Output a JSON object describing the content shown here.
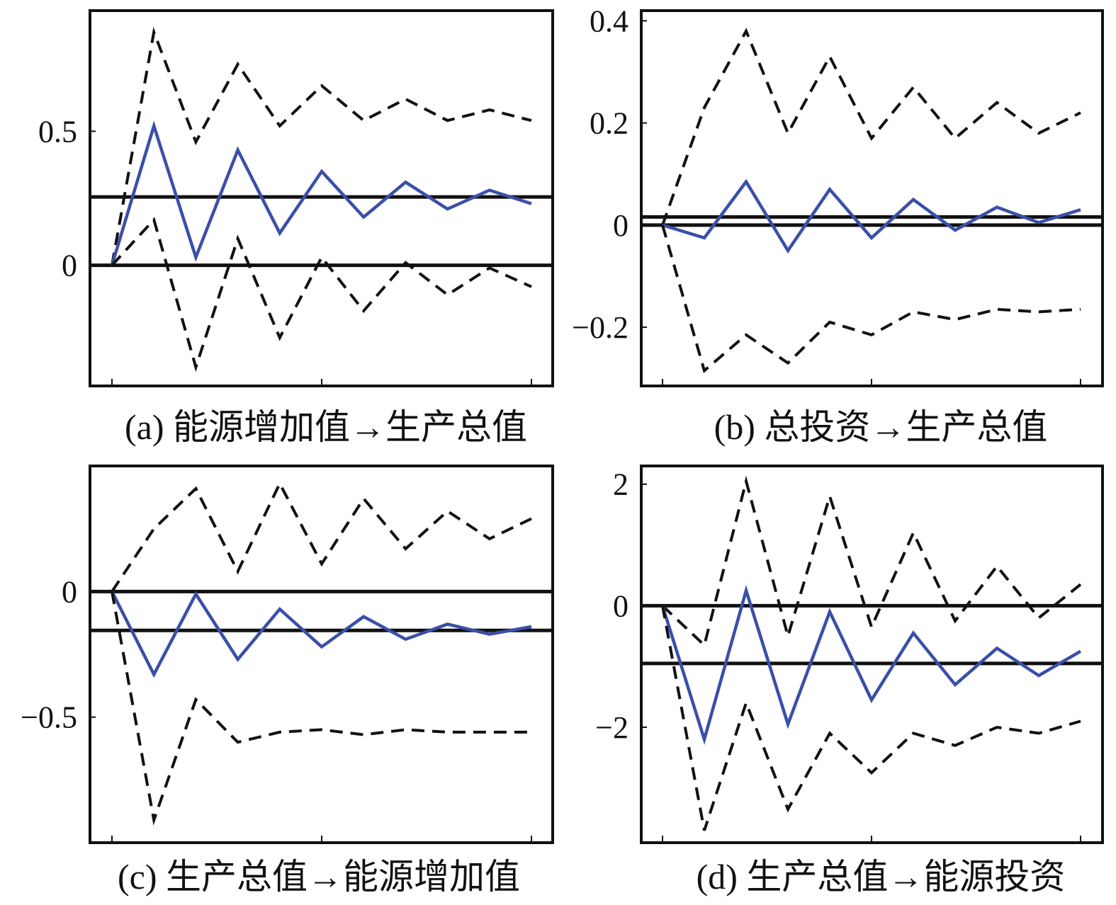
{
  "colors": {
    "impulse_response": "#3a4fa8",
    "confidence_band": "#111111",
    "reference_line": "#111111"
  },
  "chart_data": [
    {
      "type": "line",
      "caption": "(a) 能源增加值→生产总值",
      "x": [
        0,
        1,
        2,
        3,
        4,
        5,
        6,
        7,
        8,
        9,
        10
      ],
      "xlim": [
        0,
        10
      ],
      "ylim": [
        -0.45,
        0.95
      ],
      "yticks": [
        0,
        0.5
      ],
      "ytick_labels": [
        "0",
        "0.5"
      ],
      "xticks": [
        0,
        5,
        10
      ],
      "hlines": [
        0,
        0.255
      ],
      "series": [
        {
          "role": "upper",
          "values": [
            0,
            0.87,
            0.46,
            0.75,
            0.52,
            0.67,
            0.54,
            0.62,
            0.54,
            0.58,
            0.54
          ]
        },
        {
          "role": "irf",
          "values": [
            0,
            0.52,
            0.03,
            0.43,
            0.12,
            0.35,
            0.18,
            0.31,
            0.21,
            0.28,
            0.23
          ]
        },
        {
          "role": "lower",
          "values": [
            0,
            0.17,
            -0.38,
            0.1,
            -0.27,
            0.03,
            -0.17,
            0.01,
            -0.11,
            -0.01,
            -0.08
          ]
        }
      ]
    },
    {
      "type": "line",
      "caption": "(b) 总投资→生产总值",
      "x": [
        0,
        1,
        2,
        3,
        4,
        5,
        6,
        7,
        8,
        9,
        10
      ],
      "xlim": [
        0,
        10
      ],
      "ylim": [
        -0.315,
        0.42
      ],
      "yticks": [
        -0.2,
        0,
        0.2,
        0.4
      ],
      "ytick_labels": [
        "−0.2",
        "0",
        "0.2",
        "0.4"
      ],
      "xticks": [
        0,
        5,
        10
      ],
      "hlines": [
        0,
        0.016
      ],
      "series": [
        {
          "role": "upper",
          "values": [
            0,
            0.23,
            0.38,
            0.18,
            0.33,
            0.17,
            0.27,
            0.17,
            0.24,
            0.18,
            0.22
          ]
        },
        {
          "role": "irf",
          "values": [
            0,
            -0.025,
            0.085,
            -0.05,
            0.07,
            -0.025,
            0.05,
            -0.01,
            0.035,
            0.005,
            0.03
          ]
        },
        {
          "role": "lower",
          "values": [
            0,
            -0.285,
            -0.215,
            -0.27,
            -0.19,
            -0.215,
            -0.17,
            -0.185,
            -0.165,
            -0.17,
            -0.165
          ]
        }
      ]
    },
    {
      "type": "line",
      "caption": "(c) 生产总值→能源增加值",
      "x": [
        0,
        1,
        2,
        3,
        4,
        5,
        6,
        7,
        8,
        9,
        10
      ],
      "xlim": [
        0,
        10
      ],
      "ylim": [
        -1.0,
        0.5
      ],
      "yticks": [
        -0.5,
        0
      ],
      "ytick_labels": [
        "−0.5",
        "0"
      ],
      "xticks": [
        0,
        5,
        10
      ],
      "hlines": [
        0,
        -0.155
      ],
      "series": [
        {
          "role": "upper",
          "values": [
            0,
            0.25,
            0.41,
            0.08,
            0.43,
            0.11,
            0.37,
            0.17,
            0.32,
            0.21,
            0.29
          ]
        },
        {
          "role": "irf",
          "values": [
            0,
            -0.33,
            -0.01,
            -0.27,
            -0.07,
            -0.22,
            -0.1,
            -0.19,
            -0.13,
            -0.17,
            -0.14
          ]
        },
        {
          "role": "lower",
          "values": [
            0,
            -0.91,
            -0.43,
            -0.6,
            -0.56,
            -0.55,
            -0.57,
            -0.55,
            -0.56,
            -0.56,
            -0.56
          ]
        }
      ]
    },
    {
      "type": "line",
      "caption": "(d) 生产总值→能源投资",
      "x": [
        0,
        1,
        2,
        3,
        4,
        5,
        6,
        7,
        8,
        9,
        10
      ],
      "xlim": [
        0,
        10
      ],
      "ylim": [
        -3.9,
        2.3
      ],
      "yticks": [
        -2,
        0,
        2
      ],
      "ytick_labels": [
        "−2",
        "0",
        "2"
      ],
      "xticks": [
        0,
        5,
        10
      ],
      "hlines": [
        0,
        -0.95
      ],
      "series": [
        {
          "role": "upper",
          "values": [
            0,
            -0.65,
            2.05,
            -0.5,
            1.8,
            -0.35,
            1.2,
            -0.25,
            0.65,
            -0.2,
            0.35
          ]
        },
        {
          "role": "irf",
          "values": [
            0,
            -2.2,
            0.25,
            -1.95,
            -0.1,
            -1.55,
            -0.45,
            -1.3,
            -0.7,
            -1.15,
            -0.75
          ]
        },
        {
          "role": "lower",
          "values": [
            0,
            -3.7,
            -1.6,
            -3.35,
            -2.1,
            -2.75,
            -2.1,
            -2.3,
            -2.0,
            -2.1,
            -1.9
          ]
        }
      ]
    }
  ]
}
